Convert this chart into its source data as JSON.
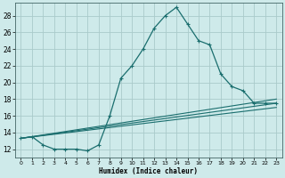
{
  "xlabel": "Humidex (Indice chaleur)",
  "background_color": "#ceeaea",
  "grid_color": "#aacaca",
  "line_color": "#1a6e6e",
  "xlim": [
    -0.5,
    23.5
  ],
  "ylim": [
    11.0,
    29.5
  ],
  "yticks": [
    12,
    14,
    16,
    18,
    20,
    22,
    24,
    26,
    28
  ],
  "xticks": [
    0,
    1,
    2,
    3,
    4,
    5,
    6,
    7,
    8,
    9,
    10,
    11,
    12,
    13,
    14,
    15,
    16,
    17,
    18,
    19,
    20,
    21,
    22,
    23
  ],
  "xtick_labels": [
    "0",
    "1",
    "2",
    "3",
    "4",
    "5",
    "6",
    "7",
    "8",
    "9",
    "10",
    "11",
    "12",
    "13",
    "14",
    "15",
    "16",
    "17",
    "18",
    "19",
    "20",
    "21",
    "22",
    "23"
  ],
  "main_x": [
    0,
    1,
    2,
    3,
    4,
    5,
    6,
    7,
    8,
    9,
    10,
    11,
    12,
    13,
    14,
    15,
    16,
    17,
    18,
    19,
    20,
    21,
    22,
    23
  ],
  "main_y": [
    13.3,
    13.5,
    12.5,
    12.0,
    12.0,
    12.0,
    11.8,
    12.5,
    16.0,
    20.5,
    22.0,
    24.0,
    26.5,
    28.0,
    29.0,
    27.0,
    25.0,
    24.5,
    21.0,
    19.5,
    19.0,
    17.5,
    17.5,
    17.5
  ],
  "trend_lines": [
    {
      "x": [
        0,
        23
      ],
      "y": [
        13.3,
        17.0
      ]
    },
    {
      "x": [
        0,
        23
      ],
      "y": [
        13.3,
        17.5
      ]
    },
    {
      "x": [
        0,
        23
      ],
      "y": [
        13.3,
        18.0
      ]
    }
  ]
}
